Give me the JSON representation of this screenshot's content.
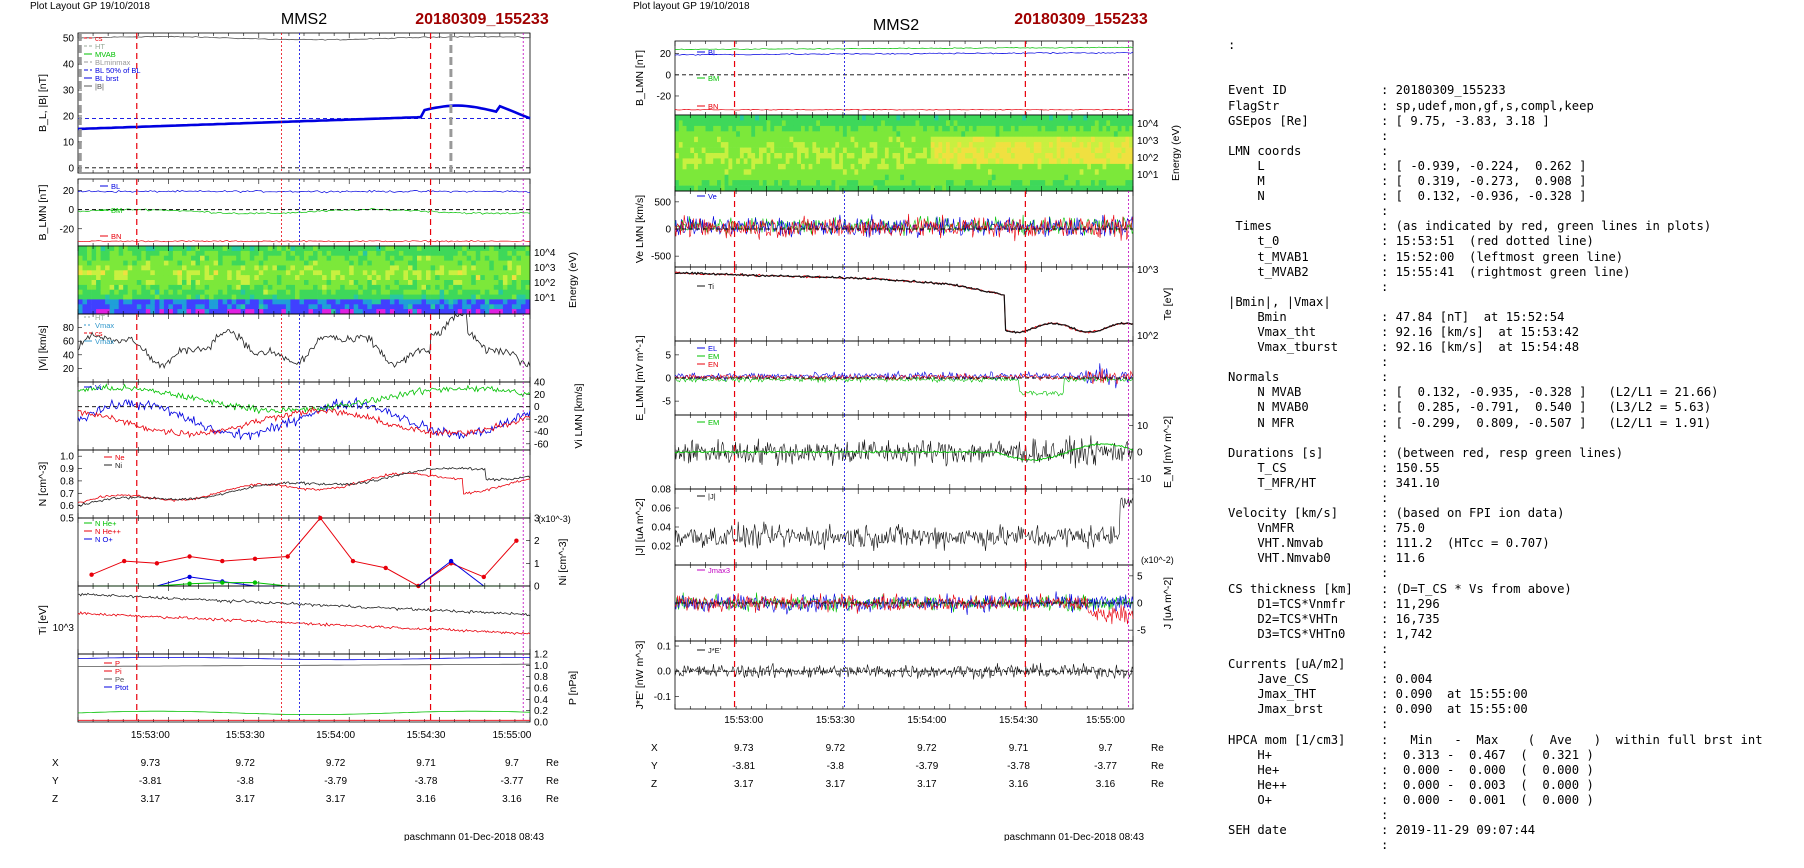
{
  "left_panel": {
    "header": "Plot Layout GP 19/10/2018",
    "spacecraft": "MMS2",
    "event": "20180309_155233",
    "footer": "paschmann 01-Dec-2018 08:43",
    "time_ticks": [
      "15:53:00",
      "15:53:30",
      "15:54:00",
      "15:54:30",
      "15:55:00"
    ],
    "ephemeris": [
      {
        "label": "X",
        "values": [
          "9.73",
          "9.72",
          "9.72",
          "9.71",
          "9.7"
        ],
        "unit": "Re"
      },
      {
        "label": "Y",
        "values": [
          "-3.81",
          "-3.8",
          "-3.79",
          "-3.78",
          "-3.77"
        ],
        "unit": "Re"
      },
      {
        "label": "Z",
        "values": [
          "3.17",
          "3.17",
          "3.17",
          "3.16",
          "3.16"
        ],
        "unit": "Re"
      }
    ]
  },
  "right_panel": {
    "header": "Plot layout GP 19/10/2018",
    "spacecraft": "MMS2",
    "event": "20180309_155233",
    "footer": "paschmann 01-Dec-2018 08:43",
    "time_ticks": [
      "15:53:00",
      "15:53:30",
      "15:54:00",
      "15:54:30",
      "15:55:00"
    ],
    "ephemeris": [
      {
        "label": "X",
        "values": [
          "9.73",
          "9.72",
          "9.72",
          "9.71",
          "9.7"
        ],
        "unit": "Re"
      },
      {
        "label": "Y",
        "values": [
          "-3.81",
          "-3.8",
          "-3.79",
          "-3.78",
          "-3.77"
        ],
        "unit": "Re"
      },
      {
        "label": "Z",
        "values": [
          "3.17",
          "3.17",
          "3.17",
          "3.16",
          "3.16"
        ],
        "unit": "Re"
      }
    ]
  },
  "colors": {
    "red": "#e8000b",
    "green": "#00c000",
    "blue": "#0000e0",
    "black": "#000000",
    "grey": "#7f7f7f",
    "magenta": "#c000c0",
    "title_red": "#a00000"
  },
  "chart_data": [
    {
      "id": "L1",
      "type": "line",
      "ylabel": "B_L, |B| [nT]",
      "ylim": [
        -2,
        52
      ],
      "yticks": [
        "50",
        "40",
        "30",
        "20",
        "10",
        "0"
      ],
      "legend": [
        "cs",
        "HT",
        "MVAB",
        "BLminmax",
        "BL 50% of BL",
        "BL brst",
        "|B|"
      ],
      "series": [
        {
          "name": "|B|",
          "approx": "flat near 50"
        },
        {
          "name": "BL brst",
          "approx": "rising 15 to 24 then 19"
        }
      ]
    },
    {
      "id": "L2",
      "type": "line",
      "ylabel": "B_LMN [nT]",
      "ylim": [
        -38,
        32
      ],
      "yticks": [
        "20",
        "0",
        "-20"
      ],
      "legend": [
        "BL",
        "BM",
        "BN"
      ],
      "series": [
        {
          "name": "BL",
          "approx": 19
        },
        {
          "name": "BM",
          "approx": -2
        },
        {
          "name": "BN",
          "approx": -33
        }
      ]
    },
    {
      "id": "L3",
      "type": "heatmap",
      "ylabel": "Energy (eV)",
      "yticks": [
        "10^4",
        "10^3",
        "10^2",
        "10^1"
      ]
    },
    {
      "id": "L4",
      "type": "line",
      "ylabel": "|Vi| [km/s]",
      "ylim": [
        0,
        100
      ],
      "yticks": [
        "80",
        "60",
        "40",
        "20"
      ],
      "legend": [
        "HT",
        "Vmax",
        "cs",
        "Vmax"
      ],
      "series": [
        {
          "name": "|Vi|",
          "approx": "noisy 30 to 95"
        }
      ]
    },
    {
      "id": "L5",
      "type": "line",
      "ylabel": "Vi LMN [km/s]",
      "ylim": [
        -70,
        40
      ],
      "yticks": [
        "40",
        "20",
        "0",
        "-20",
        "-40",
        "-60"
      ],
      "legend": [
        "Vi"
      ],
      "series": [
        {
          "name": "VL",
          "approx": "noisy"
        },
        {
          "name": "VM",
          "approx": "noisy"
        },
        {
          "name": "VN",
          "approx": "noisy"
        }
      ]
    },
    {
      "id": "L6",
      "type": "line",
      "ylabel": "N [cm^-3]",
      "ylim": [
        0.5,
        1.05
      ],
      "yticks": [
        "1.0",
        "0.9",
        "0.8",
        "0.7",
        "0.6",
        "0.5"
      ],
      "legend": [
        "Ne",
        "Ni"
      ],
      "series": [
        {
          "name": "Ne",
          "approx": "0.62 to 0.95"
        },
        {
          "name": "Ni",
          "approx": "0.6 to 1.0"
        }
      ]
    },
    {
      "id": "L7",
      "type": "line",
      "ylabel": "Ni [cm^-3]",
      "scale_note": "(x10^-3)",
      "ylim": [
        0,
        3
      ],
      "yticks": [
        "3",
        "2",
        "1",
        "0"
      ],
      "legend": [
        "N He+",
        "N He++",
        "N O+"
      ],
      "series": [
        {
          "name": "N He++",
          "values": [
            0.5,
            1.1,
            1.0,
            1.3,
            1.1,
            1.2,
            1.3,
            3.0,
            1.1,
            0.8,
            0.0,
            1.0,
            0.4,
            2.0
          ]
        },
        {
          "name": "N O+",
          "values": [
            0.0,
            0.0,
            0.0,
            0.4,
            0.2,
            0.0,
            0.0,
            0.0,
            0.0,
            0.0,
            0.0,
            1.1,
            0.0,
            0.0
          ]
        },
        {
          "name": "N He+",
          "values": [
            0.0,
            0.0,
            0.0,
            0.1,
            0.15,
            0.15,
            0.0,
            0.0,
            0.0,
            0.0,
            0.0,
            0.0,
            0.0,
            0.0
          ]
        }
      ]
    },
    {
      "id": "L8",
      "type": "line",
      "ylabel": "Ti [eV]",
      "yticks": [
        "10^3"
      ],
      "series": [
        {
          "name": "Ti black",
          "approx": "falling"
        },
        {
          "name": "Ti red",
          "approx": "falling"
        }
      ]
    },
    {
      "id": "L9",
      "type": "line",
      "ylabel": "P [nPa]",
      "ylim": [
        0,
        1.2
      ],
      "yticks": [
        "1.2",
        "1.0",
        "0.8",
        "0.6",
        "0.4",
        "0.2",
        "0.0"
      ],
      "legend": [
        "P",
        "Pi",
        "Pe",
        "Ptot"
      ]
    },
    {
      "id": "R1",
      "type": "line",
      "ylabel": "B_LMN [nT]",
      "ylim": [
        -38,
        32
      ],
      "yticks": [
        "20",
        "0",
        "-20"
      ],
      "legend": [
        "BL",
        "BM",
        "BN"
      ]
    },
    {
      "id": "R2",
      "type": "heatmap",
      "ylabel": "Energy (eV)",
      "yticks": [
        "10^4",
        "10^3",
        "10^2",
        "10^1"
      ]
    },
    {
      "id": "R3",
      "type": "line",
      "ylabel": "Ve LMN [km/s]",
      "ylim": [
        -700,
        700
      ],
      "yticks": [
        "500",
        "0",
        "-500"
      ],
      "legend": [
        "Ve"
      ]
    },
    {
      "id": "R4",
      "type": "line",
      "ylabel": "Te [eV]",
      "yticks": [
        "10^3",
        "10^2"
      ],
      "legend": [
        "Ti"
      ]
    },
    {
      "id": "R5",
      "type": "line",
      "ylabel": "E_LMN [mV m^-1]",
      "ylim": [
        -8,
        8
      ],
      "yticks": [
        "5",
        "0",
        "-5"
      ],
      "legend": [
        "EL",
        "EM",
        "EN"
      ]
    },
    {
      "id": "R6",
      "type": "line",
      "ylabel": "E_M [mV m^-2]",
      "ylim": [
        -14,
        14
      ],
      "yticks": [
        "10",
        "0",
        "-10"
      ],
      "legend": [
        "EM"
      ]
    },
    {
      "id": "R7",
      "type": "line",
      "ylabel": "|J| [uA m^-2]",
      "ylim": [
        0,
        0.08
      ],
      "yticks": [
        "0.08",
        "0.06",
        "0.04",
        "0.02"
      ],
      "legend": [
        "|J|"
      ]
    },
    {
      "id": "R8",
      "type": "line",
      "ylabel": "J [uA m^-2]",
      "scale_note": "(x10^-2)",
      "ylim": [
        -7,
        7
      ],
      "yticks": [
        "5",
        "0",
        "-5"
      ],
      "legend": [
        "Jmax3"
      ]
    },
    {
      "id": "R9",
      "type": "line",
      "ylabel": "J*E' [nW m^-3]",
      "ylim": [
        -0.15,
        0.12
      ],
      "yticks": [
        "0.1",
        "0.0",
        "-0.1"
      ],
      "legend": [
        "J*E'"
      ]
    }
  ],
  "info": {
    "lead": ":",
    "rows": [
      {
        "k": "Event ID",
        "v": ": 20180309_155233"
      },
      {
        "k": "FlagStr",
        "v": ": sp,udef,mon,gf,s,compl,keep"
      },
      {
        "k": "GSEpos [Re]",
        "v": ": [ 9.75, -3.83, 3.18 ]"
      },
      {
        "k": "",
        "v": ":"
      },
      {
        "k": "LMN coords",
        "v": ":"
      },
      {
        "k": "    L",
        "v": ": [ -0.939, -0.224,  0.262 ]"
      },
      {
        "k": "    M",
        "v": ": [  0.319, -0.273,  0.908 ]"
      },
      {
        "k": "    N",
        "v": ": [  0.132, -0.936, -0.328 ]"
      },
      {
        "k": "",
        "v": ":"
      },
      {
        "k": " Times",
        "v": ": (as indicated by red, green lines in plots)"
      },
      {
        "k": "    t_0",
        "v": ": 15:53:51  (red dotted line)"
      },
      {
        "k": "    t_MVAB1",
        "v": ": 15:52:00  (leftmost green line)"
      },
      {
        "k": "    t_MVAB2",
        "v": ": 15:55:41  (rightmost green line)"
      },
      {
        "k": "",
        "v": ":"
      },
      {
        "k": "|Bmin|, |Vmax|",
        "v": ""
      },
      {
        "k": "    Bmin",
        "v": ": 47.84 [nT]  at 15:52:54"
      },
      {
        "k": "    Vmax_tht",
        "v": ": 92.16 [km/s]  at 15:53:42"
      },
      {
        "k": "    Vmax_tburst",
        "v": ": 92.16 [km/s]  at 15:54:48"
      },
      {
        "k": "",
        "v": ":"
      },
      {
        "k": "Normals",
        "v": ":"
      },
      {
        "k": "    N MVAB",
        "v": ": [  0.132, -0.935, -0.328 ]   (L2/L1 = 21.66)"
      },
      {
        "k": "    N MVAB0",
        "v": ": [  0.285, -0.791,  0.540 ]   (L3/L2 = 5.63)"
      },
      {
        "k": "    N MFR",
        "v": ": [ -0.299,  0.809, -0.507 ]   (L2/L1 = 1.91)"
      },
      {
        "k": "",
        "v": ":"
      },
      {
        "k": "Durations [s]",
        "v": ": (between red, resp green lines)"
      },
      {
        "k": "    T_CS",
        "v": ": 150.55"
      },
      {
        "k": "    T_MFR/HT",
        "v": ": 341.10"
      },
      {
        "k": "",
        "v": ":"
      },
      {
        "k": "Velocity [km/s]",
        "v": ": (based on FPI ion data)"
      },
      {
        "k": "    VnMFR",
        "v": ": 75.0"
      },
      {
        "k": "    VHT.Nmvab",
        "v": ": 111.2  (HTcc = 0.707)"
      },
      {
        "k": "    VHT.Nmvab0",
        "v": ": 11.6"
      },
      {
        "k": "",
        "v": ":"
      },
      {
        "k": "CS thickness [km]",
        "v": ": (D=T_CS * Vs from above)"
      },
      {
        "k": "    D1=TCS*Vnmfr",
        "v": ": 11,296"
      },
      {
        "k": "    D2=TCS*VHTn",
        "v": ": 16,735"
      },
      {
        "k": "    D3=TCS*VHTn0",
        "v": ": 1,742"
      },
      {
        "k": "",
        "v": ":"
      },
      {
        "k": "Currents [uA/m2]",
        "v": ":"
      },
      {
        "k": "    Jave_CS",
        "v": ": 0.004"
      },
      {
        "k": "    Jmax_THT",
        "v": ": 0.090  at 15:55:00"
      },
      {
        "k": "    Jmax_brst",
        "v": ": 0.090  at 15:55:00"
      },
      {
        "k": "",
        "v": ":"
      },
      {
        "k": "HPCA mom [1/cm3]",
        "v": ":   Min   -  Max    (  Ave   )  within full brst int"
      },
      {
        "k": "    H+",
        "v": ":  0.313 -  0.467  (  0.321 )"
      },
      {
        "k": "    He+",
        "v": ":  0.000 -  0.000  (  0.000 )"
      },
      {
        "k": "    He++",
        "v": ":  0.000 -  0.003  (  0.000 )"
      },
      {
        "k": "    O+",
        "v": ":  0.000 -  0.001  (  0.000 )"
      },
      {
        "k": "",
        "v": ":"
      },
      {
        "k": "SEH date",
        "v": ": 2019-11-29 09:07:44"
      },
      {
        "k": "",
        "v": ":"
      }
    ]
  }
}
